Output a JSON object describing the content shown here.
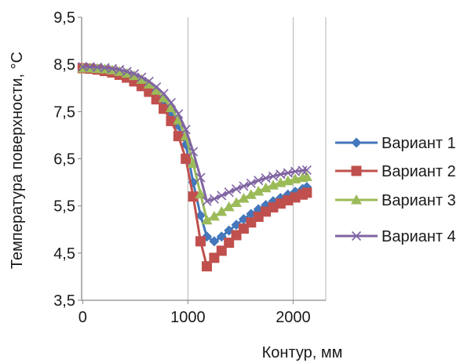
{
  "chart_data": {
    "type": "line",
    "xlabel": "Контур, мм",
    "ylabel": "Температура поверхности, °C",
    "xlim": [
      -10,
      2310
    ],
    "ylim": [
      3.5,
      9.5
    ],
    "x_ticks": [
      0,
      1000,
      2000
    ],
    "y_ticks": [
      3.5,
      4.5,
      5.5,
      6.5,
      7.5,
      8.5,
      9.5
    ],
    "x_tick_labels": [
      "0",
      "1000",
      "2000"
    ],
    "y_tick_labels": [
      "3,5",
      "4,5",
      "5,5",
      "6,5",
      "7,5",
      "8,5",
      "9,5"
    ],
    "grid": "vertical",
    "legend_position": "right",
    "x": [
      0,
      70,
      140,
      210,
      280,
      350,
      420,
      490,
      560,
      630,
      700,
      770,
      840,
      910,
      980,
      1050,
      1120,
      1180,
      1250,
      1320,
      1390,
      1460,
      1530,
      1600,
      1670,
      1740,
      1810,
      1880,
      1950,
      2020,
      2090,
      2130
    ],
    "series": [
      {
        "name": "Вариант 1",
        "color": "#4477BB",
        "marker": "diamond",
        "values": [
          8.42,
          8.42,
          8.41,
          8.39,
          8.37,
          8.33,
          8.28,
          8.22,
          8.13,
          8.02,
          7.88,
          7.7,
          7.48,
          7.2,
          6.8,
          6.0,
          5.3,
          4.85,
          4.75,
          4.85,
          4.98,
          5.1,
          5.22,
          5.33,
          5.43,
          5.52,
          5.6,
          5.67,
          5.74,
          5.8,
          5.86,
          5.9
        ]
      },
      {
        "name": "Вариант 2",
        "color": "#C0504D",
        "marker": "square",
        "values": [
          8.42,
          8.41,
          8.39,
          8.36,
          8.33,
          8.28,
          8.22,
          8.14,
          8.04,
          7.92,
          7.76,
          7.56,
          7.3,
          6.98,
          6.5,
          5.7,
          4.75,
          4.22,
          4.4,
          4.55,
          4.72,
          4.88,
          5.02,
          5.15,
          5.27,
          5.38,
          5.47,
          5.55,
          5.62,
          5.68,
          5.74,
          5.78
        ]
      },
      {
        "name": "Вариант 3",
        "color": "#9BBB59",
        "marker": "triangle",
        "values": [
          8.42,
          8.42,
          8.41,
          8.4,
          8.38,
          8.35,
          8.31,
          8.26,
          8.18,
          8.08,
          7.95,
          7.79,
          7.58,
          7.32,
          6.98,
          6.4,
          5.75,
          5.2,
          5.28,
          5.38,
          5.48,
          5.57,
          5.66,
          5.74,
          5.81,
          5.88,
          5.94,
          5.99,
          6.03,
          6.07,
          6.1,
          6.12
        ]
      },
      {
        "name": "Вариант 4",
        "color": "#8064A2",
        "marker": "x",
        "values": [
          8.45,
          8.45,
          8.44,
          8.43,
          8.41,
          8.39,
          8.35,
          8.3,
          8.23,
          8.14,
          8.02,
          7.88,
          7.69,
          7.45,
          7.12,
          6.65,
          6.1,
          5.6,
          5.65,
          5.72,
          5.79,
          5.86,
          5.92,
          5.98,
          6.04,
          6.09,
          6.13,
          6.17,
          6.2,
          6.23,
          6.25,
          6.26
        ]
      }
    ]
  }
}
